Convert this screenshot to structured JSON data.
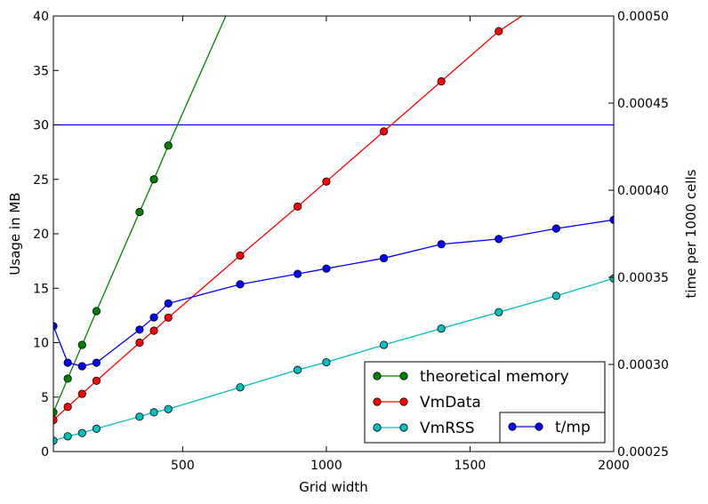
{
  "chart_data": {
    "type": "line",
    "title": "",
    "xlabel": "Grid width",
    "ylabel_left": "Usage in MB",
    "ylabel_right": "time per 1000 cells",
    "xlim": [
      50,
      2000
    ],
    "ylim_left": [
      0,
      40
    ],
    "ylim_right": [
      0.00025,
      0.0005
    ],
    "x_ticks": [
      "500",
      "1000",
      "1500",
      "2000"
    ],
    "x_tick_values": [
      500,
      1000,
      1500,
      2000
    ],
    "y_left_ticks": [
      "0",
      "5",
      "10",
      "15",
      "20",
      "25",
      "30",
      "35",
      "40"
    ],
    "y_left_tick_values": [
      0,
      5,
      10,
      15,
      20,
      25,
      30,
      35,
      40
    ],
    "y_right_ticks": [
      "0.00025",
      "0.00030",
      "0.00035",
      "0.00040",
      "0.00045",
      "0.00050"
    ],
    "y_right_tick_values": [
      0.00025,
      0.0003,
      0.00035,
      0.0004,
      0.00045,
      0.0005
    ],
    "hline": {
      "axis": "left",
      "value": 30,
      "color": "#0000ff"
    },
    "series": [
      {
        "name": "theoretical memory",
        "axis": "left",
        "color": "#008000",
        "marker": "circle",
        "x": [
          50,
          100,
          150,
          200,
          350,
          400,
          450
        ],
        "y": [
          3.6,
          6.7,
          9.8,
          12.9,
          22.0,
          25.0,
          28.1
        ],
        "line_extends_to": [
          650,
          40
        ]
      },
      {
        "name": "VmData",
        "axis": "left",
        "color": "#ff0000",
        "marker": "circle",
        "x": [
          50,
          100,
          150,
          200,
          350,
          400,
          450,
          700,
          900,
          1000,
          1200,
          1400,
          1600
        ],
        "y": [
          2.9,
          4.1,
          5.3,
          6.5,
          10.0,
          11.1,
          12.3,
          18.0,
          22.5,
          24.8,
          29.4,
          34.0,
          38.6
        ],
        "line_extends_to": [
          1680,
          40
        ]
      },
      {
        "name": "VmRSS",
        "axis": "left",
        "color": "#00bfbf",
        "marker": "circle",
        "x": [
          50,
          100,
          150,
          200,
          350,
          400,
          450,
          700,
          900,
          1000,
          1200,
          1400,
          1600,
          1800,
          2000
        ],
        "y": [
          1.0,
          1.4,
          1.7,
          2.1,
          3.2,
          3.6,
          3.9,
          5.9,
          7.5,
          8.2,
          9.8,
          11.3,
          12.8,
          14.3,
          15.9
        ]
      },
      {
        "name": "t/mp",
        "axis": "right",
        "color": "#0000ff",
        "marker": "circle",
        "x": [
          50,
          100,
          150,
          200,
          350,
          400,
          450,
          700,
          900,
          1000,
          1200,
          1400,
          1600,
          1800,
          2000
        ],
        "y": [
          0.000322,
          0.000301,
          0.000299,
          0.000301,
          0.00032,
          0.000327,
          0.000335,
          0.000346,
          0.000352,
          0.000355,
          0.000361,
          0.000369,
          0.000372,
          0.000378,
          0.000383
        ]
      }
    ],
    "legends": [
      {
        "placement": "lower-right",
        "entries": [
          "theoretical memory",
          "VmData",
          "VmRSS"
        ]
      },
      {
        "placement": "lower-right",
        "entries": [
          "t/mp"
        ]
      }
    ],
    "grid": false
  }
}
